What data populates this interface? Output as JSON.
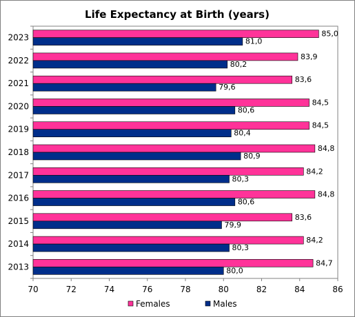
{
  "chart_data": {
    "type": "bar",
    "orientation": "horizontal",
    "title": "Life Expectancy at Birth (years)",
    "xlabel": "",
    "ylabel": "",
    "categories": [
      "2023",
      "2022",
      "2021",
      "2020",
      "2019",
      "2018",
      "2017",
      "2016",
      "2015",
      "2014",
      "2013"
    ],
    "series": [
      {
        "name": "Females",
        "color": "#ff3399",
        "values": [
          85.0,
          83.9,
          83.6,
          84.5,
          84.5,
          84.8,
          84.2,
          84.8,
          83.6,
          84.2,
          84.7
        ],
        "labels": [
          "85,0",
          "83,9",
          "83,6",
          "84,5",
          "84,5",
          "84,8",
          "84,2",
          "84,8",
          "83,6",
          "84,2",
          "84,7"
        ]
      },
      {
        "name": "Males",
        "color": "#002e8a",
        "values": [
          81.0,
          80.2,
          79.6,
          80.6,
          80.4,
          80.9,
          80.3,
          80.6,
          79.9,
          80.3,
          80.0
        ],
        "labels": [
          "81,0",
          "80,2",
          "79,6",
          "80,6",
          "80,4",
          "80,9",
          "80,3",
          "80,6",
          "79,9",
          "80,3",
          "80,0"
        ]
      }
    ],
    "xlim": [
      70,
      86
    ],
    "xticks": [
      "70",
      "72",
      "74",
      "76",
      "78",
      "80",
      "82",
      "84",
      "86"
    ],
    "grid": false,
    "legend_position": "bottom"
  }
}
